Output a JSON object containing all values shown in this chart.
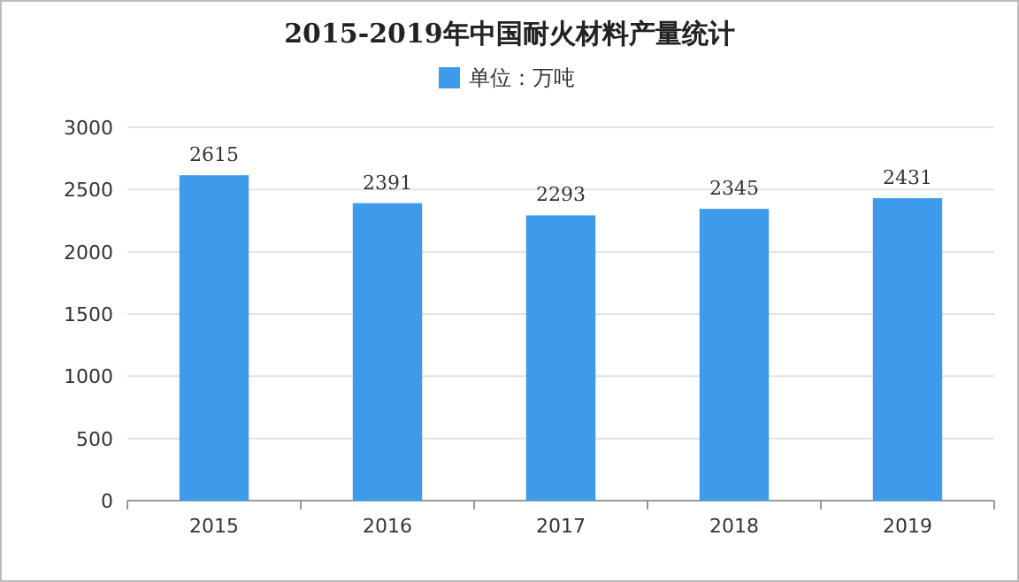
{
  "chart_data": {
    "type": "bar",
    "title": "2015-2019年中国耐火材料产量统计",
    "categories": [
      "2015",
      "2016",
      "2017",
      "2018",
      "2019"
    ],
    "series": [
      {
        "name": "单位：万吨",
        "color": "#3d9be9",
        "values": [
          2615,
          2391,
          2293,
          2345,
          2431
        ]
      }
    ],
    "ylim": [
      0,
      3000
    ],
    "yticks": [
      0,
      500,
      1000,
      1500,
      2000,
      2500,
      3000
    ],
    "grid": "y",
    "legend": "top",
    "data_labels": true
  }
}
